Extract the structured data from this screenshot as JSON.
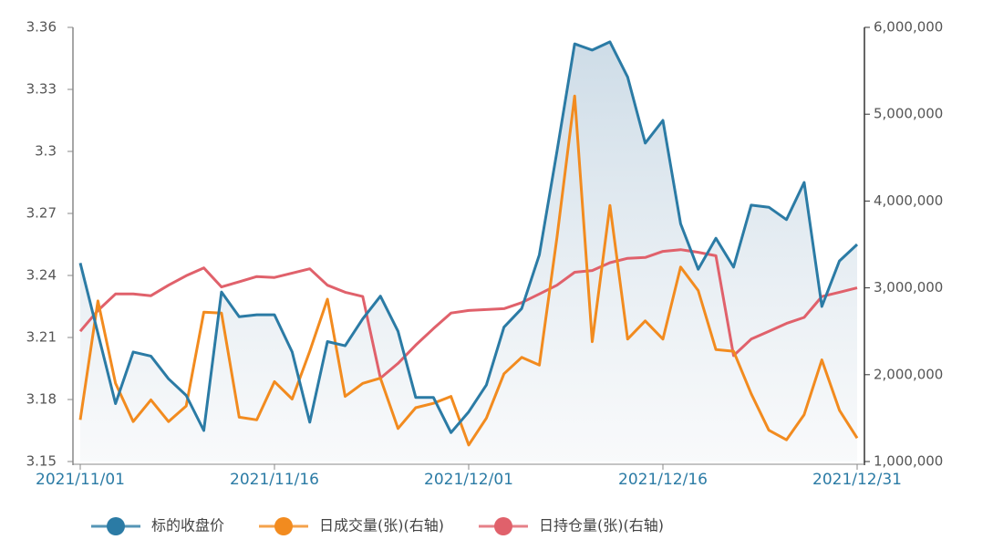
{
  "chart_data": {
    "type": "line",
    "categories": [
      "2021/11/01",
      null,
      null,
      null,
      null,
      null,
      null,
      null,
      null,
      null,
      null,
      "2021/11/16",
      null,
      null,
      null,
      null,
      null,
      null,
      null,
      null,
      null,
      null,
      "2021/12/01",
      null,
      null,
      null,
      null,
      null,
      null,
      null,
      null,
      null,
      null,
      "2021/12/16",
      null,
      null,
      null,
      null,
      null,
      null,
      null,
      null,
      null,
      null,
      "2021/12/31"
    ],
    "series": [
      {
        "name": "标的收盘价",
        "color": "#2b7ba5",
        "area": true,
        "values": [
          3.246,
          3.212,
          3.178,
          3.203,
          3.201,
          3.19,
          3.182,
          3.165,
          3.232,
          3.22,
          3.221,
          3.221,
          3.203,
          3.169,
          3.208,
          3.206,
          3.219,
          3.23,
          3.213,
          3.181,
          3.181,
          3.164,
          3.174,
          3.187,
          3.215,
          3.224,
          3.25,
          3.3,
          3.352,
          3.349,
          3.353,
          3.336,
          3.304,
          3.315,
          3.265,
          3.243,
          3.258,
          3.244,
          3.274,
          3.273,
          3.267,
          3.285,
          3.225,
          3.247,
          3.255
        ]
      },
      {
        "name": "日成交量(张)(右轴)",
        "color": "#f28b1f",
        "axis": "y2",
        "values": [
          1480000,
          2850000,
          1900000,
          1460000,
          1710000,
          1460000,
          1640000,
          2720000,
          2710000,
          1510000,
          1480000,
          1920000,
          1720000,
          2270000,
          2870000,
          1750000,
          1900000,
          1960000,
          1380000,
          1620000,
          1670000,
          1750000,
          1190000,
          1500000,
          2010000,
          2200000,
          2110000,
          3580000,
          5210000,
          2380000,
          3950000,
          2410000,
          2620000,
          2410000,
          3240000,
          2970000,
          2290000,
          2270000,
          1780000,
          1360000,
          1250000,
          1540000,
          2170000,
          1590000,
          1270000
        ]
      },
      {
        "name": "日持仓量(张)(右轴)",
        "color": "#e0616b",
        "axis": "y2",
        "values": [
          2500000,
          2740000,
          2930000,
          2930000,
          2910000,
          3030000,
          3140000,
          3230000,
          3010000,
          3070000,
          3130000,
          3120000,
          3170000,
          3220000,
          3030000,
          2950000,
          2900000,
          1960000,
          2130000,
          2340000,
          2530000,
          2710000,
          2740000,
          2750000,
          2760000,
          2830000,
          2930000,
          3030000,
          3180000,
          3200000,
          3290000,
          3340000,
          3350000,
          3420000,
          3440000,
          3410000,
          3370000,
          2220000,
          2410000,
          2500000,
          2590000,
          2660000,
          2900000,
          2950000,
          3000000
        ]
      }
    ],
    "ylim": [
      3.15,
      3.36
    ],
    "yticks": [
      3.15,
      3.18,
      3.21,
      3.24,
      3.27,
      3.3,
      3.33,
      3.36
    ],
    "y2lim": [
      1000000,
      6000000
    ],
    "y2ticks": [
      {
        "value": 1000000,
        "label": "1,000,000"
      },
      {
        "value": 2000000,
        "label": "2,000,000"
      },
      {
        "value": 3000000,
        "label": "3,000,000"
      },
      {
        "value": 4000000,
        "label": "4,000,000"
      },
      {
        "value": 5000000,
        "label": "5,000,000"
      },
      {
        "value": 6000000,
        "label": "6,000,000"
      }
    ],
    "legend": "bottom"
  }
}
